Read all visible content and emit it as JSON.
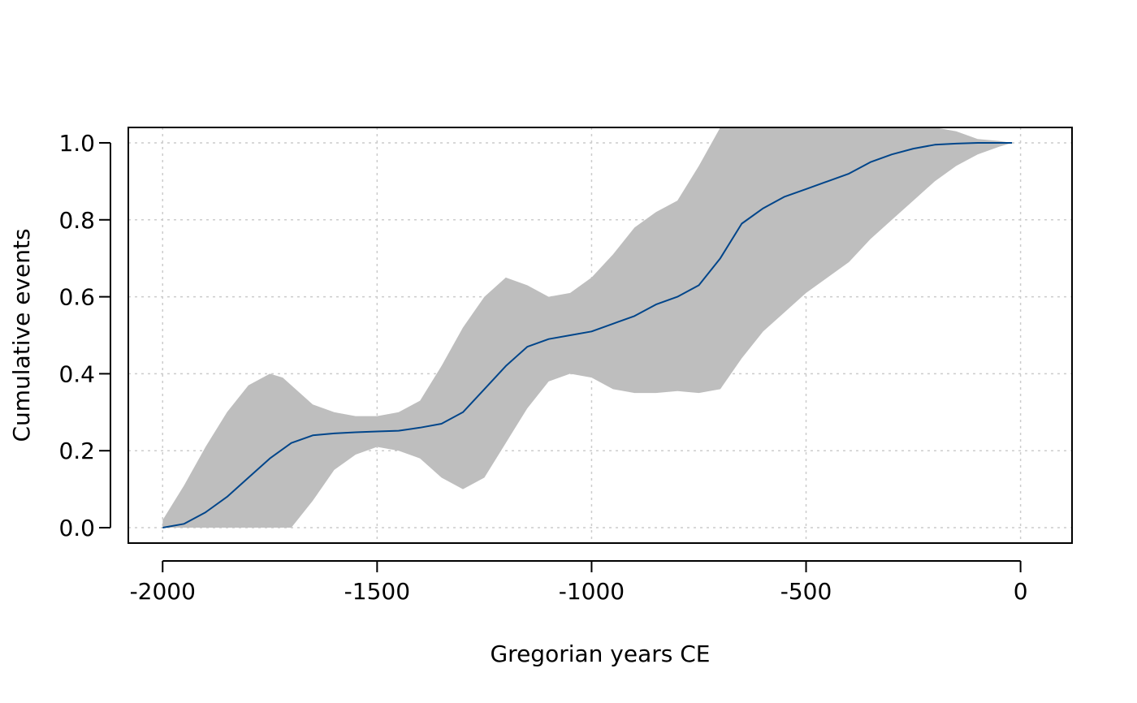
{
  "chart_data": {
    "type": "area",
    "title": "",
    "xlabel": "Gregorian years CE",
    "ylabel": "Cumulative events",
    "xlim": [
      -2080,
      120
    ],
    "ylim": [
      -0.04,
      1.04
    ],
    "x_ticks": [
      -2000,
      -1500,
      -1000,
      -500,
      0
    ],
    "x_tick_labels": [
      "-2000",
      "-1500",
      "-1000",
      "-500",
      "0"
    ],
    "y_ticks": [
      0.0,
      0.2,
      0.4,
      0.6,
      0.8,
      1.0
    ],
    "y_tick_labels": [
      "0.0",
      "0.2",
      "0.4",
      "0.6",
      "0.8",
      "1.0"
    ],
    "grid": true,
    "colors": {
      "band": "#bebebe",
      "line": "#00458a",
      "grid": "#cccccc"
    },
    "band": {
      "x": [
        -2000,
        -1950,
        -1900,
        -1850,
        -1800,
        -1750,
        -1720,
        -1700,
        -1650,
        -1600,
        -1550,
        -1500,
        -1450,
        -1400,
        -1350,
        -1300,
        -1250,
        -1200,
        -1150,
        -1100,
        -1050,
        -1000,
        -950,
        -900,
        -850,
        -800,
        -750,
        -700,
        -650,
        -600,
        -550,
        -500,
        -450,
        -400,
        -350,
        -300,
        -250,
        -200,
        -150,
        -100,
        -50,
        -20
      ],
      "upper": [
        0.02,
        0.11,
        0.21,
        0.3,
        0.37,
        0.4,
        0.39,
        0.37,
        0.32,
        0.3,
        0.29,
        0.29,
        0.3,
        0.33,
        0.42,
        0.52,
        0.6,
        0.65,
        0.63,
        0.6,
        0.61,
        0.65,
        0.71,
        0.78,
        0.82,
        0.85,
        0.94,
        1.04,
        1.04,
        1.04,
        1.04,
        1.04,
        1.04,
        1.04,
        1.04,
        1.04,
        1.04,
        1.04,
        1.03,
        1.01,
        1.005,
        1.0
      ],
      "lower": [
        0.0,
        0.0,
        0.0,
        0.0,
        0.0,
        0.0,
        0.0,
        0.0,
        0.07,
        0.15,
        0.19,
        0.21,
        0.2,
        0.18,
        0.13,
        0.1,
        0.13,
        0.22,
        0.31,
        0.38,
        0.4,
        0.39,
        0.36,
        0.35,
        0.35,
        0.355,
        0.35,
        0.36,
        0.44,
        0.51,
        0.56,
        0.61,
        0.65,
        0.69,
        0.75,
        0.8,
        0.85,
        0.9,
        0.94,
        0.97,
        0.99,
        1.0
      ]
    },
    "series": [
      {
        "x": [
          -2000,
          -1950,
          -1900,
          -1850,
          -1800,
          -1750,
          -1700,
          -1650,
          -1600,
          -1550,
          -1500,
          -1450,
          -1400,
          -1350,
          -1300,
          -1250,
          -1200,
          -1150,
          -1100,
          -1050,
          -1000,
          -950,
          -900,
          -850,
          -800,
          -750,
          -700,
          -650,
          -600,
          -550,
          -500,
          -450,
          -400,
          -350,
          -300,
          -250,
          -200,
          -150,
          -100,
          -50,
          -20
        ],
        "values": [
          0.0,
          0.01,
          0.04,
          0.08,
          0.13,
          0.18,
          0.22,
          0.24,
          0.245,
          0.248,
          0.25,
          0.252,
          0.26,
          0.27,
          0.3,
          0.36,
          0.42,
          0.47,
          0.49,
          0.5,
          0.51,
          0.53,
          0.55,
          0.58,
          0.6,
          0.63,
          0.7,
          0.79,
          0.83,
          0.86,
          0.88,
          0.9,
          0.92,
          0.95,
          0.97,
          0.985,
          0.995,
          0.998,
          1.0,
          1.0,
          1.0
        ]
      }
    ]
  }
}
